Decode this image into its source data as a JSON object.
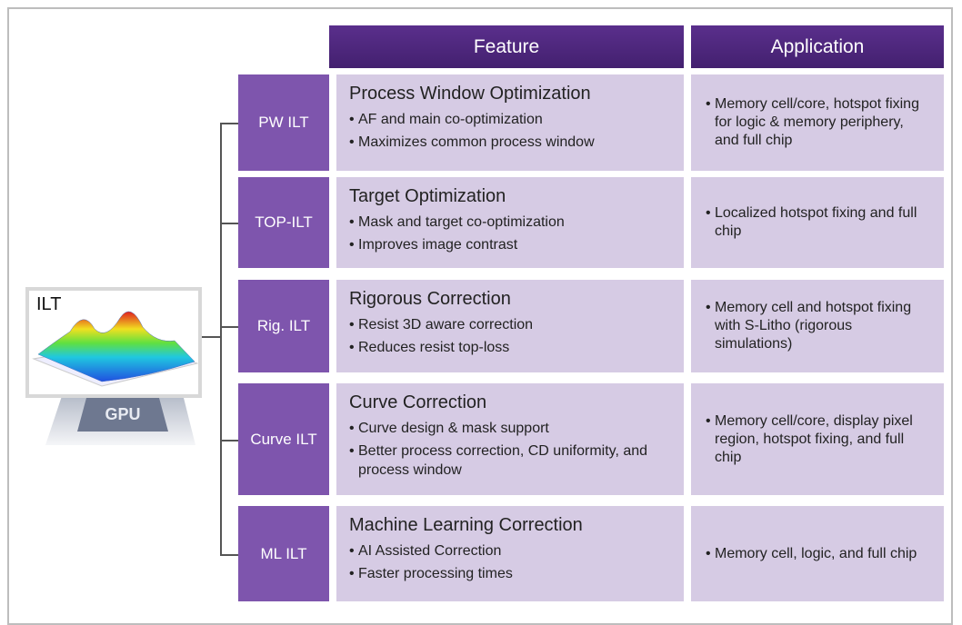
{
  "header": {
    "feature": "Feature",
    "application": "Application"
  },
  "image": {
    "label": "ILT",
    "chip_label": "GPU"
  },
  "rows": [
    {
      "label": "PW ILT",
      "title": "Process Window Optimization",
      "bullets": [
        "AF and main co-optimization",
        "Maximizes common process window"
      ],
      "application": "Memory cell/core, hotspot fixing for logic & memory periphery, and full chip"
    },
    {
      "label": "TOP-ILT",
      "title": "Target Optimization",
      "bullets": [
        "Mask and target co-optimization",
        "Improves image contrast"
      ],
      "application": "Localized hotspot fixing and full chip"
    },
    {
      "label": "Rig. ILT",
      "title": "Rigorous Correction",
      "bullets": [
        "Resist 3D aware correction",
        "Reduces resist top-loss"
      ],
      "application": "Memory cell and hotspot fixing with S-Litho (rigorous simulations)"
    },
    {
      "label": "Curve ILT",
      "title": "Curve Correction",
      "bullets": [
        "Curve design & mask support",
        "Better process correction, CD uniformity, and process window"
      ],
      "application": "Memory cell/core, display pixel region, hotspot fixing, and full chip"
    },
    {
      "label": "ML ILT",
      "title": "Machine Learning Correction",
      "bullets": [
        "AI Assisted Correction",
        "Faster processing times"
      ],
      "application": "Memory cell, logic, and full chip"
    }
  ]
}
